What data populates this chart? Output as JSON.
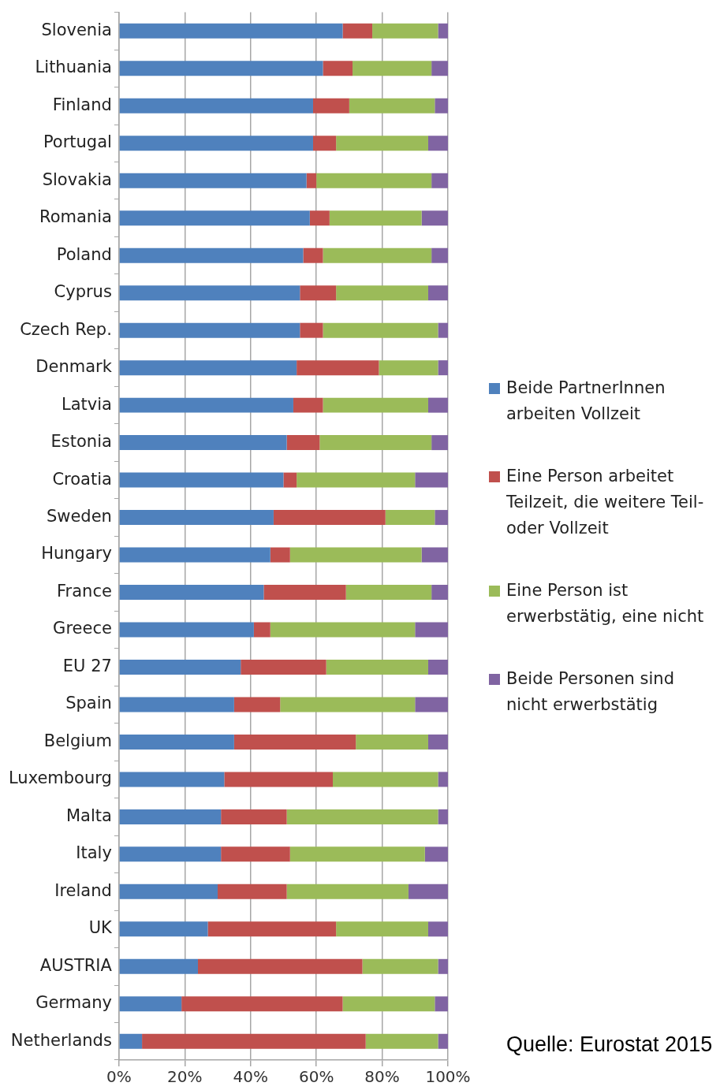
{
  "chart_data": {
    "type": "bar",
    "orientation": "horizontal",
    "stacked": true,
    "categories": [
      "Slovenia",
      "Lithuania",
      "Finland",
      "Portugal",
      "Slovakia",
      "Romania",
      "Poland",
      "Cyprus",
      "Czech Rep.",
      "Denmark",
      "Latvia",
      "Estonia",
      "Croatia",
      "Sweden",
      "Hungary",
      "France",
      "Greece",
      "EU 27",
      "Spain",
      "Belgium",
      "Luxembourg",
      "Malta",
      "Italy",
      "Ireland",
      "UK",
      "AUSTRIA",
      "Germany",
      "Netherlands"
    ],
    "series": [
      {
        "name": "Beide PartnerInnen arbeiten Vollzeit",
        "color": "#4f81bd",
        "values": [
          68,
          62,
          59,
          59,
          57,
          58,
          56,
          55,
          55,
          54,
          53,
          51,
          50,
          47,
          46,
          44,
          41,
          37,
          35,
          35,
          32,
          31,
          31,
          30,
          27,
          24,
          19,
          7
        ]
      },
      {
        "name": "Eine Person arbeitet Teilzeit, die weitere Teil- oder Vollzeit",
        "color": "#c0504d",
        "values": [
          9,
          9,
          11,
          7,
          3,
          6,
          6,
          11,
          7,
          25,
          9,
          10,
          4,
          34,
          6,
          25,
          5,
          26,
          14,
          37,
          33,
          20,
          21,
          21,
          39,
          50,
          49,
          68
        ]
      },
      {
        "name": "Eine Person ist erwerbstätig, eine nicht",
        "color": "#9bbb59",
        "values": [
          20,
          24,
          26,
          28,
          35,
          28,
          33,
          28,
          35,
          18,
          32,
          34,
          36,
          15,
          40,
          26,
          44,
          31,
          41,
          22,
          32,
          46,
          41,
          37,
          28,
          23,
          28,
          22
        ]
      },
      {
        "name": "Beide Personen sind nicht erwerbstätig",
        "color": "#8064a2",
        "values": [
          3,
          5,
          4,
          6,
          5,
          8,
          5,
          6,
          3,
          3,
          6,
          5,
          10,
          4,
          8,
          5,
          10,
          6,
          10,
          6,
          3,
          3,
          7,
          12,
          6,
          3,
          4,
          3
        ]
      }
    ],
    "xlim": [
      0,
      100
    ],
    "xticks": [
      {
        "value": 0,
        "label": "0%"
      },
      {
        "value": 20,
        "label": "20%"
      },
      {
        "value": 40,
        "label": "40%"
      },
      {
        "value": 60,
        "label": "60%"
      },
      {
        "value": 80,
        "label": "80%"
      },
      {
        "value": 100,
        "label": "100%"
      }
    ],
    "grid": "x",
    "legend": "right",
    "annotations": [
      "Quelle: Eurostat 2015"
    ]
  }
}
